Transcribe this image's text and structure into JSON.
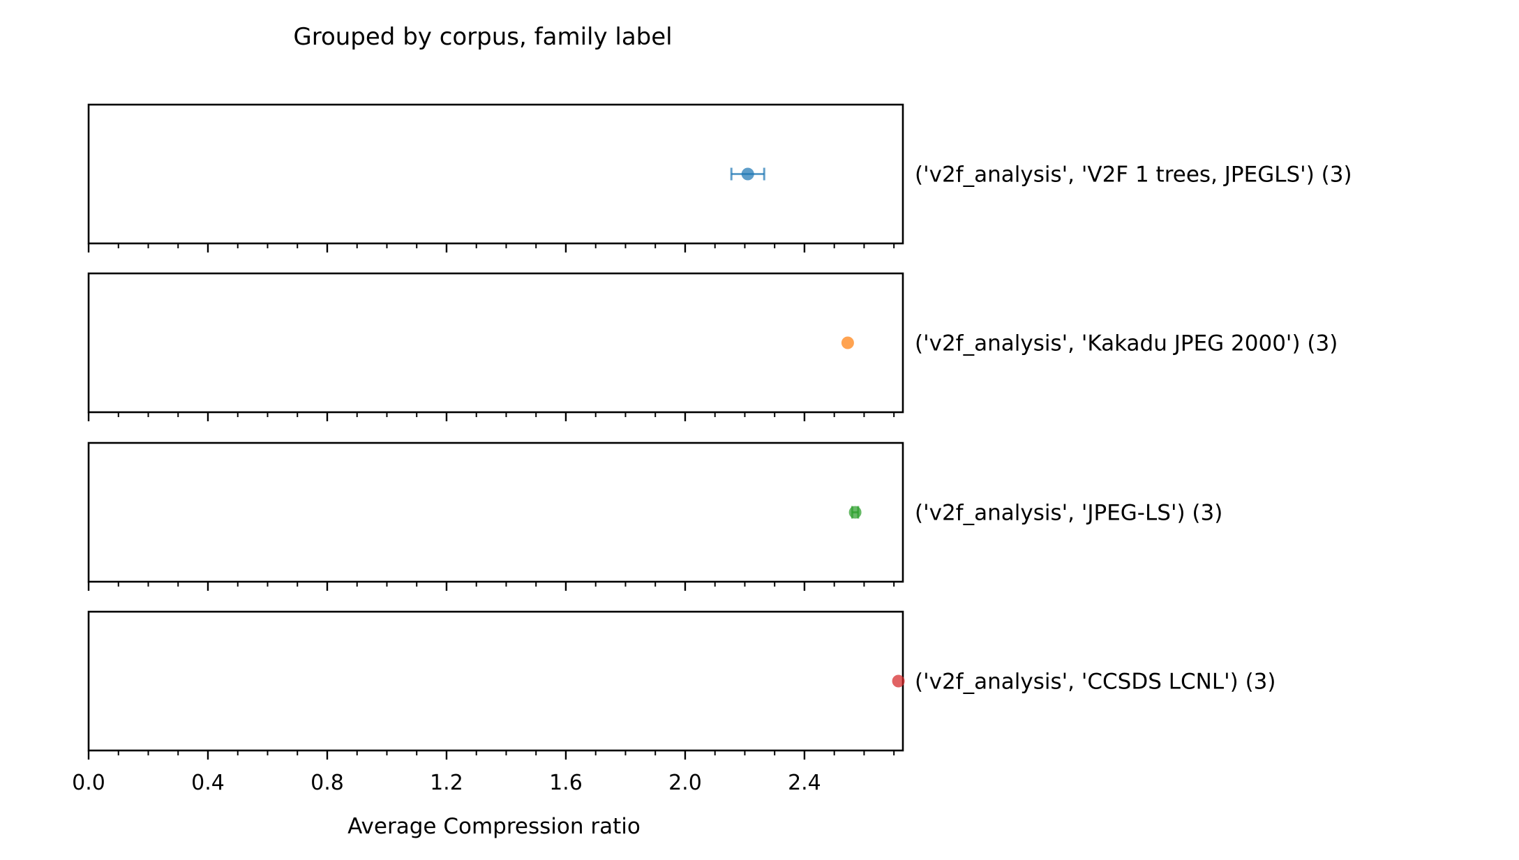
{
  "chart_data": {
    "type": "scatter",
    "title": "Grouped by corpus, family label",
    "xlabel": "Average Compression ratio",
    "ylabel": "",
    "xlim": [
      0.0,
      2.73
    ],
    "x_ticks": [
      "0.0",
      "0.4",
      "0.8",
      "1.2",
      "1.6",
      "2.0",
      "2.4"
    ],
    "x_tick_values": [
      0.0,
      0.4,
      0.8,
      1.2,
      1.6,
      2.0,
      2.4
    ],
    "minor_tick_step": 0.1,
    "grid": false,
    "legend": "none",
    "series": [
      {
        "name": "('v2f_analysis', 'V2F 1 trees, JPEGLS') (3)",
        "x": 2.21,
        "xerr": 0.055,
        "color": "#1f77b4"
      },
      {
        "name": "('v2f_analysis', 'Kakadu JPEG 2000') (3)",
        "x": 2.545,
        "xerr": 0.0,
        "color": "#ff7f0e"
      },
      {
        "name": "('v2f_analysis', 'JPEG-LS') (3)",
        "x": 2.57,
        "xerr": 0.01,
        "color": "#2ca02c"
      },
      {
        "name": "('v2f_analysis', 'CCSDS LCNL') (3)",
        "x": 2.715,
        "xerr": 0.0,
        "color": "#d62728"
      }
    ]
  }
}
